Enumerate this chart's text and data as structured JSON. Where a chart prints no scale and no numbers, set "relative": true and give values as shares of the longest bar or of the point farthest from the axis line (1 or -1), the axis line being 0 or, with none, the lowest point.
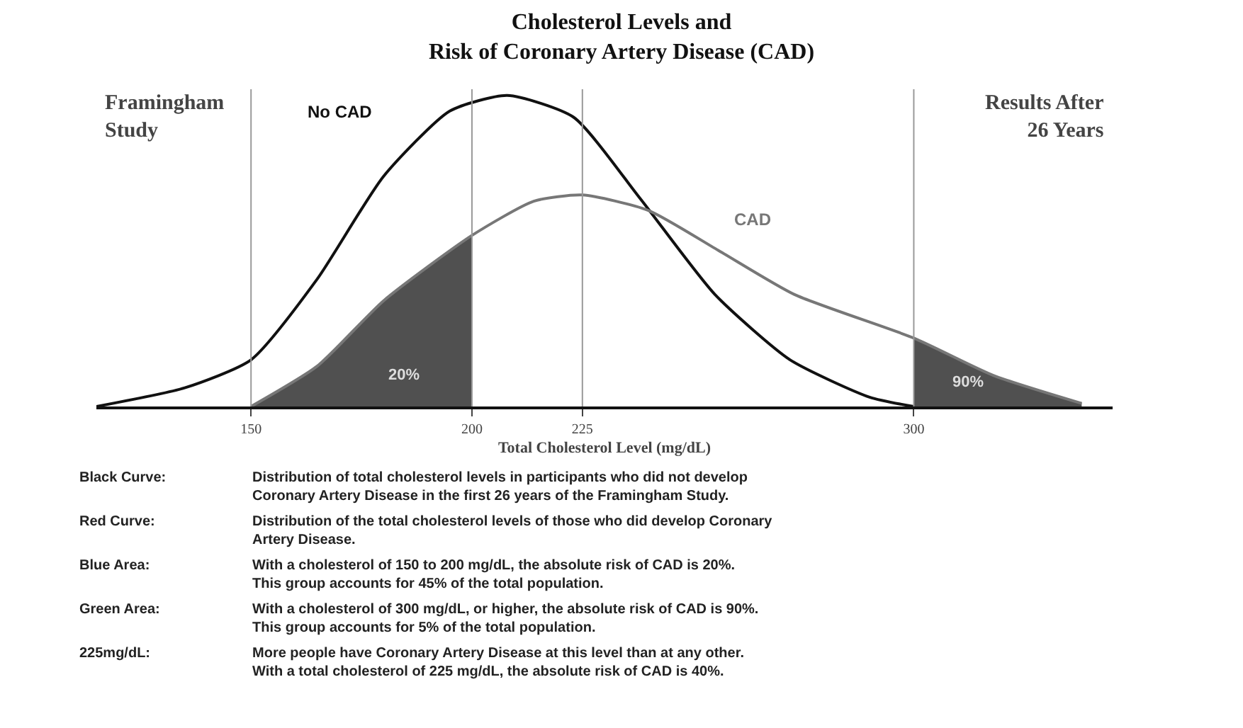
{
  "chart_data": {
    "type": "line",
    "title": "Cholesterol Levels and\nRisk of Coronary Artery Disease (CAD)",
    "xlabel": "Total Cholesterol Level (mg/dL)",
    "relative": true,
    "xlim": [
      115,
      345
    ],
    "xticks": [
      150,
      200,
      225,
      300
    ],
    "grid": false,
    "legend": false,
    "marker": "none",
    "line_style": "solid",
    "series": [
      {
        "name": "No CAD",
        "color": "#111111",
        "x": [
          115,
          135,
          150,
          165,
          180,
          195,
          208,
          223,
          238,
          255,
          272,
          290,
          300
        ],
        "values": [
          0,
          0.06,
          0.15,
          0.41,
          0.74,
          0.95,
          1,
          0.93,
          0.67,
          0.36,
          0.15,
          0.03,
          0
        ]
      },
      {
        "name": "CAD",
        "color": "#777777",
        "x": [
          150,
          165,
          180,
          200,
          214,
          225,
          240,
          256,
          273,
          300,
          318,
          338
        ],
        "values": [
          0,
          0.13,
          0.34,
          0.55,
          0.66,
          0.68,
          0.63,
          0.5,
          0.36,
          0.22,
          0.1,
          0.01
        ]
      },
      {
        "type": "area",
        "color": "#505050",
        "x": [
          150,
          165,
          180,
          200
        ],
        "values": [
          0,
          0.13,
          0.34,
          0.55
        ]
      },
      {
        "type": "area",
        "color": "#505050",
        "x": [
          300,
          318,
          338
        ],
        "values": [
          0.22,
          0.1,
          0.01
        ]
      }
    ],
    "ref_lines": [
      {
        "axis": "x",
        "value": 150,
        "color": "#999999"
      },
      {
        "axis": "x",
        "value": 200,
        "color": "#999999"
      },
      {
        "axis": "x",
        "value": 225,
        "color": "#999999"
      },
      {
        "axis": "x",
        "value": 300,
        "color": "#999999"
      }
    ],
    "annotations": [
      "Framingham\nStudy",
      "Results After\n26 Years",
      "20%",
      "90%",
      "Black Curve:",
      "Distribution of total cholesterol levels in participants who did not develop\nCoronary Artery Disease in the first 26 years of the Framingham Study.",
      "Red Curve:",
      "Distribution of the total cholesterol levels of those who did develop Coronary\nArtery Disease.",
      "Blue Area:",
      "With a cholesterol of 150 to 200 mg/dL, the absolute risk of CAD is 20%.\nThis group accounts for 45% of the total population.",
      "Green Area:",
      "With a cholesterol of 300 mg/dL, or higher, the absolute risk of CAD is 90%.\nThis group accounts for 5% of the total population.",
      "225mg/dL:",
      "More people have Coronary Artery Disease at this level than at any other.\nWith a total cholesterol of 225 mg/dL, the absolute risk of CAD is 40%."
    ]
  }
}
